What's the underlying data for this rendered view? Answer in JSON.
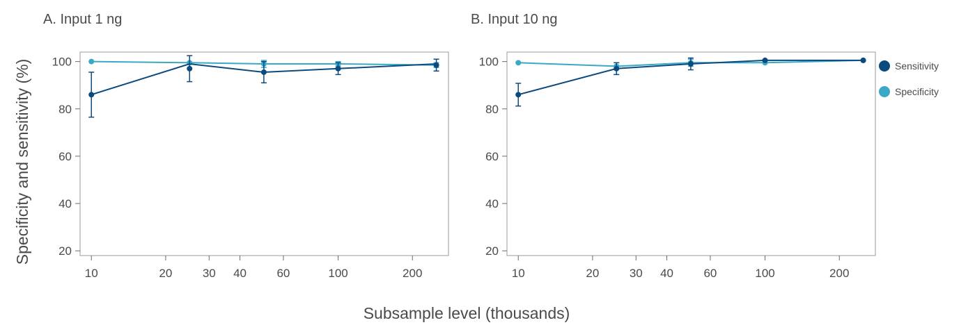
{
  "y_axis_label": "Specificity and sensitivity (%)",
  "x_axis_label": "Subsample level (thousands)",
  "legend": [
    {
      "label": "Sensitivity",
      "color": "#0b4a7e"
    },
    {
      "label": "Specificity",
      "color": "#3aa9c6"
    }
  ],
  "chart_data": [
    {
      "type": "line",
      "title": "A. Input 1 ng",
      "x_scale": "log",
      "xlim": [
        9,
        280
      ],
      "ylim": [
        18,
        104
      ],
      "x_ticks": [
        10,
        20,
        30,
        40,
        60,
        100,
        200
      ],
      "y_ticks": [
        20,
        40,
        60,
        80,
        100
      ],
      "series": [
        {
          "name": "Sensitivity",
          "color": "#0b4a7e",
          "x": [
            10,
            25,
            50,
            100,
            250
          ],
          "y": [
            86,
            97,
            95.5,
            97,
            98.5
          ],
          "error": [
            9.5,
            5.5,
            4.5,
            2.5,
            2.5
          ],
          "line_y": [
            86,
            99,
            95.5,
            97,
            99
          ]
        },
        {
          "name": "Specificity",
          "color": "#3aa9c6",
          "x": [
            10,
            25,
            50,
            100,
            250
          ],
          "y": [
            100,
            99.5,
            99,
            99,
            98.5
          ],
          "error": [
            0,
            0,
            1.5,
            1,
            1
          ]
        }
      ]
    },
    {
      "type": "line",
      "title": "B. Input 10 ng",
      "x_scale": "log",
      "xlim": [
        9,
        280
      ],
      "ylim": [
        18,
        104
      ],
      "x_ticks": [
        10,
        20,
        30,
        40,
        60,
        100,
        200
      ],
      "y_ticks": [
        20,
        40,
        60,
        80,
        100
      ],
      "series": [
        {
          "name": "Sensitivity",
          "color": "#0b4a7e",
          "x": [
            10,
            25,
            50,
            100,
            250
          ],
          "y": [
            86,
            97,
            99,
            100.5,
            100.5
          ],
          "error": [
            4.8,
            2.5,
            2.5,
            0,
            0
          ]
        },
        {
          "name": "Specificity",
          "color": "#3aa9c6",
          "x": [
            10,
            25,
            50,
            100,
            250
          ],
          "y": [
            99.5,
            98,
            99.5,
            99.5,
            100.5
          ],
          "error": [
            0,
            0,
            1.5,
            0,
            0
          ]
        }
      ]
    }
  ]
}
